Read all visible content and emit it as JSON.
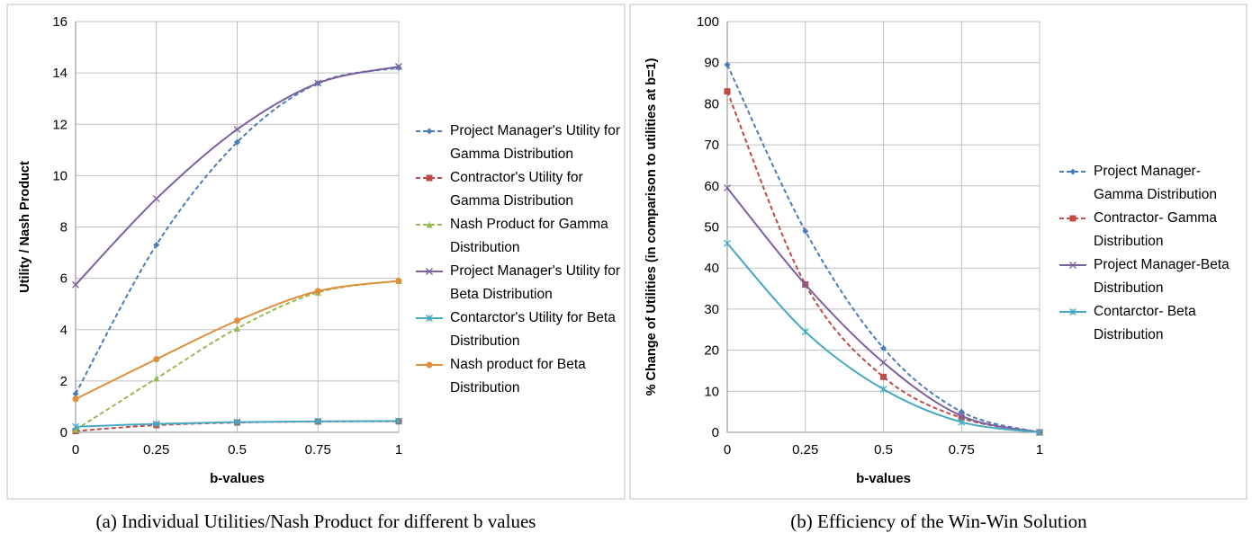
{
  "chart_data": [
    {
      "type": "line",
      "caption": "(a)  Individual Utilities/Nash Product for different b values",
      "x_label": "b-values",
      "y_label": "Utility / Nash Product",
      "x": [
        0,
        0.25,
        0.5,
        0.75,
        1
      ],
      "xlim": [
        0,
        1
      ],
      "xticks": [
        0,
        0.25,
        0.5,
        0.75,
        1
      ],
      "ylim": [
        0,
        16
      ],
      "yticks": [
        0,
        2,
        4,
        6,
        8,
        10,
        12,
        14,
        16
      ],
      "grid": true,
      "legend": "right",
      "series": [
        {
          "name": "Project Manager's Utility for Gamma Distribution",
          "color": "#4a7ebb",
          "dashed": true,
          "marker": "diamond",
          "values": [
            1.5,
            7.3,
            11.3,
            13.6,
            14.2
          ]
        },
        {
          "name": "Contractor's Utility for Gamma Distribution",
          "color": "#be4b48",
          "dashed": true,
          "marker": "square",
          "values": [
            0.05,
            0.28,
            0.38,
            0.42,
            0.43
          ]
        },
        {
          "name": "Nash Product for Gamma Distribution",
          "color": "#98b954",
          "dashed": true,
          "marker": "triangle",
          "values": [
            0.1,
            2.1,
            4.05,
            5.45,
            5.9
          ]
        },
        {
          "name": "Project Manager's Utility for Beta Distribution",
          "color": "#7d60a0",
          "dashed": false,
          "marker": "x",
          "values": [
            5.75,
            9.1,
            11.8,
            13.6,
            14.25
          ]
        },
        {
          "name": "Contarctor's Utility for Beta Distribution",
          "color": "#46aac5",
          "dashed": false,
          "marker": "star",
          "values": [
            0.22,
            0.33,
            0.4,
            0.43,
            0.44
          ]
        },
        {
          "name": "Nash product for Beta Distribution",
          "color": "#e08f3c",
          "dashed": false,
          "marker": "circle",
          "values": [
            1.3,
            2.85,
            4.35,
            5.5,
            5.9
          ]
        }
      ]
    },
    {
      "type": "line",
      "caption": "(b)  Efficiency of the Win-Win Solution",
      "x_label": "b-values",
      "y_label": "% Change of Utilities (in comparison to utilities at b=1)",
      "x": [
        0,
        0.25,
        0.5,
        0.75,
        1
      ],
      "xlim": [
        0,
        1
      ],
      "xticks": [
        0,
        0.25,
        0.5,
        0.75,
        1
      ],
      "ylim": [
        0,
        100
      ],
      "yticks": [
        0,
        10,
        20,
        30,
        40,
        50,
        60,
        70,
        80,
        90,
        100
      ],
      "grid": true,
      "legend": "right",
      "series": [
        {
          "name": "Project Manager- Gamma Distribution",
          "color": "#4a7ebb",
          "dashed": true,
          "marker": "diamond",
          "values": [
            89.5,
            49,
            20.5,
            5,
            0
          ]
        },
        {
          "name": "Contractor- Gamma Distribution",
          "color": "#be4b48",
          "dashed": true,
          "marker": "square",
          "values": [
            83,
            36,
            13.5,
            3.5,
            0
          ]
        },
        {
          "name": "Project Manager-Beta Distribution",
          "color": "#7d60a0",
          "dashed": false,
          "marker": "x",
          "values": [
            59.5,
            36,
            17,
            4,
            0
          ]
        },
        {
          "name": "Contarctor- Beta Distribution",
          "color": "#46aac5",
          "dashed": false,
          "marker": "star",
          "values": [
            46,
            24.5,
            10.5,
            2.5,
            0
          ]
        }
      ]
    }
  ]
}
